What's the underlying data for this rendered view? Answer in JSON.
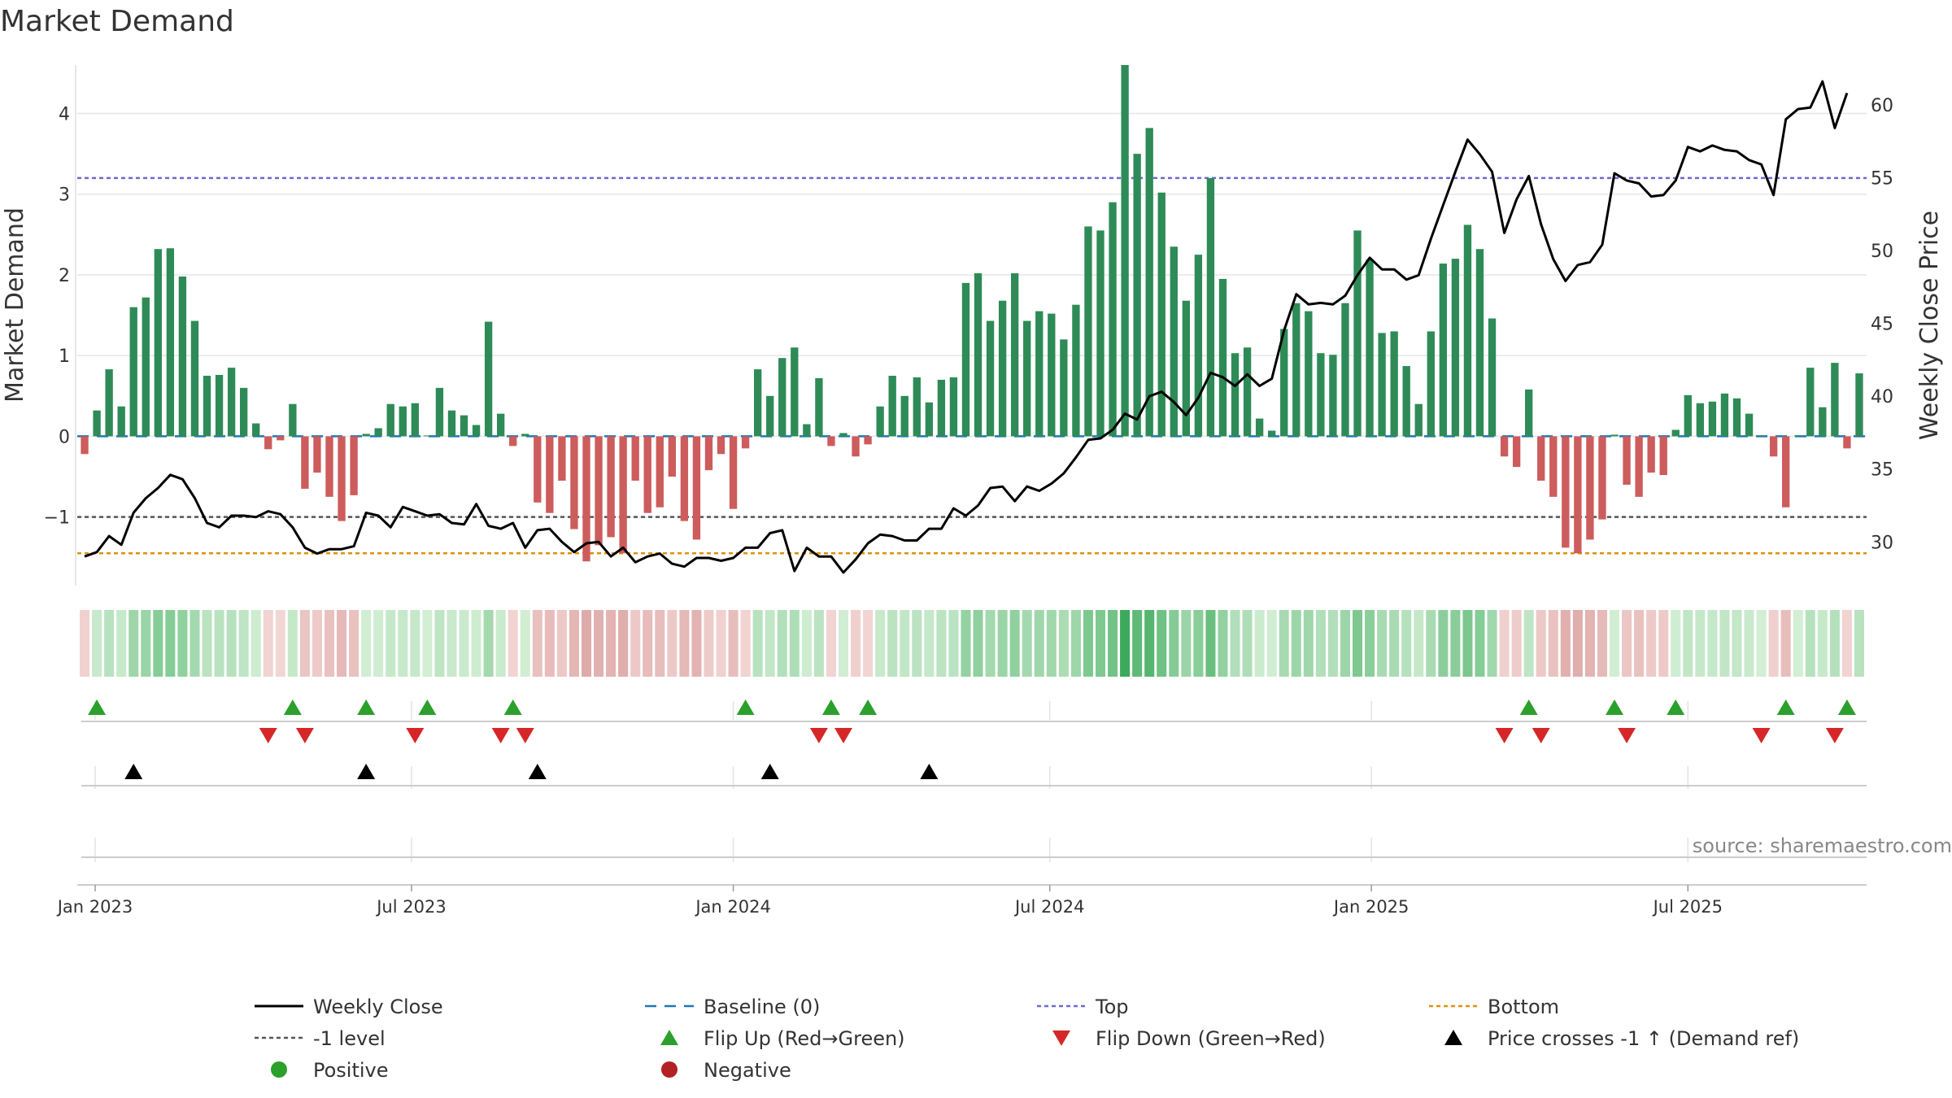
{
  "chart_data": {
    "type": "bar+line",
    "title": "Market Demand",
    "ylabel_left": "Market Demand",
    "ylabel_right": "Weekly Close Price",
    "source": "source: sharemaestro.com",
    "ylim_left": [
      -1.85,
      4.65
    ],
    "ylim_right": [
      27.0,
      63.0
    ],
    "y_ticks_left": [
      -1,
      0,
      1,
      2,
      3,
      4
    ],
    "y_tick_labels_left": [
      "−1",
      "0",
      "1",
      "2",
      "3",
      "4"
    ],
    "y_ticks_right": [
      30,
      35,
      40,
      45,
      50,
      55,
      60
    ],
    "y_tick_labels_right": [
      "30",
      "35",
      "40",
      "45",
      "50",
      "55",
      "60"
    ],
    "x_start_date": "2022-12-26",
    "x_range_weeks": [
      -0.6,
      145.6
    ],
    "x_ticks": [
      {
        "label": "Jan 2023",
        "week": 0.86
      },
      {
        "label": "Jul 2023",
        "week": 26.71
      },
      {
        "label": "Jan 2024",
        "week": 53.0
      },
      {
        "label": "Jul 2024",
        "week": 78.86
      },
      {
        "label": "Jan 2025",
        "week": 105.14
      },
      {
        "label": "Jul 2025",
        "week": 131.0
      }
    ],
    "reference_lines": {
      "top": 3.2,
      "minus_one": -1.0,
      "bottom": -1.45,
      "baseline": 0
    },
    "series": [
      {
        "name": "Market Demand",
        "type": "bar",
        "x": "week index (0 = 2022-12-26)",
        "values": [
          -0.22,
          0.32,
          0.83,
          0.37,
          1.6,
          1.72,
          2.32,
          2.33,
          1.98,
          1.43,
          0.75,
          0.76,
          0.85,
          0.6,
          0.16,
          -0.16,
          -0.05,
          0.4,
          -0.65,
          -0.45,
          -0.75,
          -1.05,
          -0.73,
          0.03,
          0.1,
          0.4,
          0.37,
          0.41,
          0.01,
          0.6,
          0.32,
          0.26,
          0.14,
          1.42,
          0.28,
          -0.12,
          0.03,
          -0.82,
          -0.95,
          -0.55,
          -1.15,
          -1.55,
          -1.35,
          -1.25,
          -1.45,
          -0.55,
          -0.95,
          -0.88,
          -0.5,
          -1.05,
          -1.28,
          -0.42,
          -0.22,
          -0.9,
          -0.15,
          0.83,
          0.5,
          0.97,
          1.1,
          0.15,
          0.72,
          -0.12,
          0.04,
          -0.25,
          -0.1,
          0.37,
          0.75,
          0.5,
          0.73,
          0.42,
          0.7,
          0.73,
          1.9,
          2.02,
          1.43,
          1.68,
          2.02,
          1.43,
          1.55,
          1.52,
          1.2,
          1.63,
          2.6,
          2.55,
          2.9,
          4.6,
          3.5,
          3.82,
          3.02,
          2.35,
          1.68,
          2.25,
          3.2,
          1.95,
          1.03,
          1.1,
          0.22,
          0.07,
          1.33,
          1.65,
          1.55,
          1.03,
          1.01,
          1.65,
          2.55,
          2.19,
          1.28,
          1.3,
          0.87,
          0.4,
          1.3,
          2.14,
          2.2,
          2.62,
          2.32,
          1.46,
          -0.25,
          -0.38,
          0.58,
          -0.55,
          -0.75,
          -1.38,
          -1.45,
          -1.28,
          -1.03,
          0.02,
          -0.6,
          -0.75,
          -0.45,
          -0.48,
          0.08,
          0.51,
          0.41,
          0.43,
          0.53,
          0.47,
          0.28,
          0.01,
          -0.25,
          -0.88,
          0.01,
          0.85,
          0.36,
          0.91,
          -0.15,
          0.78
        ]
      },
      {
        "name": "Weekly Close",
        "type": "line",
        "axis": "right",
        "values": [
          29.0,
          29.3,
          30.4,
          29.8,
          32.0,
          33.0,
          33.7,
          34.6,
          34.3,
          33.0,
          31.3,
          31.0,
          31.8,
          31.8,
          31.7,
          32.1,
          31.9,
          31.0,
          29.6,
          29.2,
          29.5,
          29.5,
          29.7,
          32.0,
          31.8,
          31.0,
          32.4,
          32.1,
          31.8,
          31.9,
          31.3,
          31.2,
          32.6,
          31.1,
          30.9,
          31.3,
          29.6,
          30.8,
          30.9,
          30.0,
          29.3,
          29.9,
          30.0,
          29.0,
          29.6,
          28.6,
          29.0,
          29.2,
          28.5,
          28.3,
          28.9,
          28.9,
          28.7,
          28.9,
          29.6,
          29.6,
          30.6,
          30.8,
          28.0,
          29.6,
          29.0,
          29.0,
          27.9,
          28.8,
          29.9,
          30.5,
          30.4,
          30.1,
          30.1,
          30.9,
          30.9,
          32.3,
          31.8,
          32.5,
          33.7,
          33.8,
          32.8,
          33.8,
          33.5,
          34.0,
          34.7,
          35.8,
          37.0,
          37.1,
          37.7,
          38.8,
          38.4,
          40.0,
          40.3,
          39.6,
          38.7,
          39.9,
          41.6,
          41.3,
          40.7,
          41.5,
          40.7,
          41.2,
          44.5,
          47.0,
          46.3,
          46.4,
          46.3,
          46.9,
          48.3,
          49.5,
          48.7,
          48.7,
          48.0,
          48.3,
          50.8,
          53.1,
          55.4,
          57.6,
          56.6,
          55.4,
          51.2,
          53.5,
          55.1,
          51.8,
          49.4,
          47.9,
          49.0,
          49.2,
          50.4,
          55.3,
          54.8,
          54.6,
          53.7,
          53.8,
          54.8,
          57.1,
          56.8,
          57.2,
          56.9,
          56.8,
          56.2,
          55.9,
          53.8,
          59.0,
          59.7,
          59.8,
          61.6,
          58.4,
          60.8
        ]
      }
    ],
    "heat_strip": {
      "description": "one cell per week, colored by Market Demand value (green = positive, red = negative)"
    },
    "events": {
      "flip_up_weeks": [
        1,
        17,
        23,
        28,
        35,
        54,
        61,
        64,
        118,
        125,
        130,
        139,
        144
      ],
      "flip_down_weeks": [
        15,
        18,
        27,
        34,
        36,
        60,
        62,
        116,
        119,
        126,
        137,
        143
      ],
      "price_cross_weeks": [
        4,
        23,
        37,
        56,
        69
      ]
    },
    "legend": [
      {
        "label": "Weekly Close",
        "symbol": "solid-line",
        "color": "#000000"
      },
      {
        "label": "Baseline (0)",
        "symbol": "dashed-line",
        "color": "#1f77b4"
      },
      {
        "label": "Top",
        "symbol": "dotted-line",
        "color": "#6a6ad0"
      },
      {
        "label": "Bottom",
        "symbol": "dotted-line",
        "color": "#e0900a"
      },
      {
        "label": "-1 level",
        "symbol": "dotted-line",
        "color": "#555555"
      },
      {
        "label": "Flip Up (Red→Green)",
        "symbol": "triangle-up",
        "color": "#2ca02c"
      },
      {
        "label": "Flip Down (Green→Red)",
        "symbol": "triangle-down",
        "color": "#d62728"
      },
      {
        "label": "Price crosses -1 ↑ (Demand ref)",
        "symbol": "triangle-up",
        "color": "#000000"
      },
      {
        "label": "Positive",
        "symbol": "circle",
        "color": "#2ca02c"
      },
      {
        "label": "Negative",
        "symbol": "circle",
        "color": "#b22222"
      }
    ],
    "colors": {
      "positive_bar": "#2e8b57",
      "negative_bar": "#cd5c5c",
      "close_line": "#000000",
      "top_line": "#6a6ad0",
      "bottom_line": "#e0900a",
      "minus_one_line": "#555555",
      "baseline": "#1f77b4",
      "flip_up": "#2ca02c",
      "flip_down": "#d62728",
      "price_cross": "#000000",
      "grid": "#e6e6e6"
    }
  }
}
